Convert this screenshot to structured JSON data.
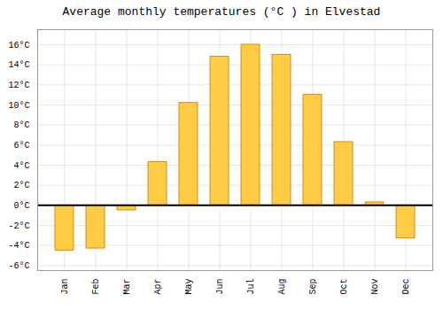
{
  "chart_data": {
    "type": "bar",
    "title": "Average monthly temperatures (°C ) in Elvestad",
    "categories": [
      "Jan",
      "Feb",
      "Mar",
      "Apr",
      "May",
      "Jun",
      "Jul",
      "Aug",
      "Sep",
      "Oct",
      "Nov",
      "Dec"
    ],
    "values": [
      -4.5,
      -4.3,
      -0.5,
      4.3,
      10.2,
      14.8,
      16.0,
      15.0,
      11.0,
      6.3,
      0.3,
      -3.3
    ],
    "color": "#FFCC44",
    "ylim": [
      -6.5,
      17.5
    ],
    "yticks": [
      {
        "value": -6,
        "label": "-6°C"
      },
      {
        "value": -4,
        "label": "-4°C"
      },
      {
        "value": -2,
        "label": "-2°C"
      },
      {
        "value": 0,
        "label": "0°C"
      },
      {
        "value": 2,
        "label": "2°C"
      },
      {
        "value": 4,
        "label": "4°C"
      },
      {
        "value": 6,
        "label": "6°C"
      },
      {
        "value": 8,
        "label": "8°C"
      },
      {
        "value": 10,
        "label": "10°C"
      },
      {
        "value": 12,
        "label": "12°C"
      },
      {
        "value": 14,
        "label": "14°C"
      },
      {
        "value": 16,
        "label": "16°C"
      }
    ],
    "grid": true
  }
}
